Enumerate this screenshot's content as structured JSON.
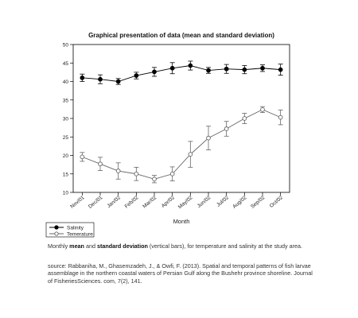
{
  "chart_data": {
    "type": "line",
    "title": "Graphical presentation of data (mean and standard deviation)",
    "xlabel": "Month",
    "ylabel": "",
    "categories": [
      "Nov/01",
      "Dec/01",
      "Jan/02",
      "Feb/02",
      "Mar/02",
      "Apr/02",
      "May/02",
      "Jun/02",
      "Jul/02",
      "Aug/02",
      "Sep/02",
      "Oct/02"
    ],
    "ylim": [
      10,
      50
    ],
    "yticks": [
      10,
      15,
      20,
      25,
      30,
      35,
      40,
      45,
      50
    ],
    "grid": false,
    "legend_position": "bottom-left",
    "series": [
      {
        "name": "Salinity",
        "marker": "filled-circle",
        "color": "#000000",
        "values": [
          41.0,
          40.6,
          40.0,
          41.6,
          42.6,
          43.6,
          44.3,
          43.0,
          43.4,
          43.2,
          43.6,
          43.2
        ],
        "error": [
          1.0,
          1.2,
          0.8,
          0.9,
          1.2,
          1.5,
          1.2,
          0.8,
          1.2,
          1.1,
          0.9,
          1.5
        ]
      },
      {
        "name": "Temerature",
        "marker": "open-circle",
        "color": "#666666",
        "values": [
          19.6,
          17.7,
          15.8,
          15.0,
          13.6,
          15.0,
          20.3,
          24.7,
          27.2,
          30.0,
          32.4,
          30.3
        ],
        "error": [
          1.2,
          1.8,
          2.2,
          1.8,
          1.0,
          1.9,
          3.5,
          3.2,
          2.0,
          1.4,
          0.8,
          2.0
        ]
      }
    ]
  },
  "caption": {
    "line1_start": "Monthly ",
    "mean_word": "mean",
    "and_word": " and ",
    "sd_word": "standard deviation",
    "line1_end": " (vertical bars), for temperature and salinity at the study area.",
    "source": "source: Rabbaniha, M., Ghasemzadeh, J., & Owfi, F. (2013). Spatial and temporal patterns of fish larvae assemblage in the northern coastal waters of Persian Gulf along the Bushehr province shoreline. Journal of FisheriesSciences. com, 7(2), 141."
  }
}
